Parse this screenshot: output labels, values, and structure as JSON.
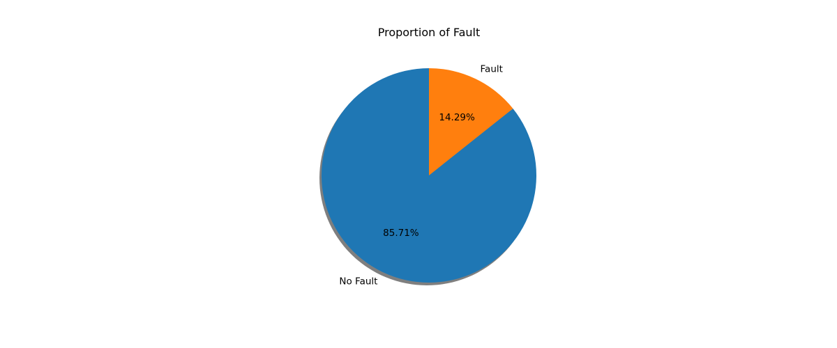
{
  "chart_data": {
    "type": "pie",
    "title": "Proportion of Fault",
    "categories": [
      "No Fault",
      "Fault"
    ],
    "values": [
      85.71,
      14.29
    ],
    "percent_labels": [
      "85.71%",
      "14.29%"
    ],
    "colors": [
      "#1f77b4",
      "#ff7f0e"
    ],
    "shadow": true,
    "start_angle_deg": 90,
    "direction": "counterclockwise",
    "legend": "none"
  }
}
